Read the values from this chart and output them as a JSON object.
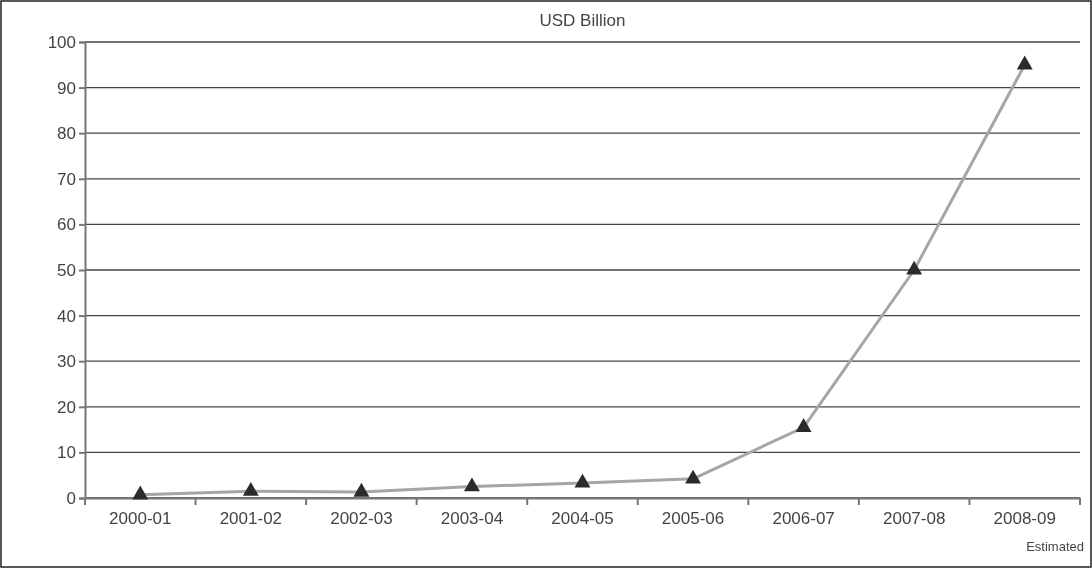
{
  "chart_data": {
    "type": "line",
    "title": "USD Billion",
    "categories": [
      "2000-01",
      "2001-02",
      "2002-03",
      "2003-04",
      "2004-05",
      "2005-06",
      "2006-07",
      "2007-08",
      "2008-09"
    ],
    "series": [
      {
        "color": "#a6a6a6",
        "values": [
          0.7,
          1.5,
          1.3,
          2.5,
          3.3,
          4.2,
          15.5,
          50,
          95
        ]
      }
    ],
    "ylim": [
      0,
      100
    ],
    "yticks": [
      0,
      10,
      20,
      30,
      40,
      50,
      60,
      70,
      80,
      90,
      100
    ],
    "grid": "y",
    "marker": "triangle",
    "annotations": [
      "Estimated"
    ]
  }
}
